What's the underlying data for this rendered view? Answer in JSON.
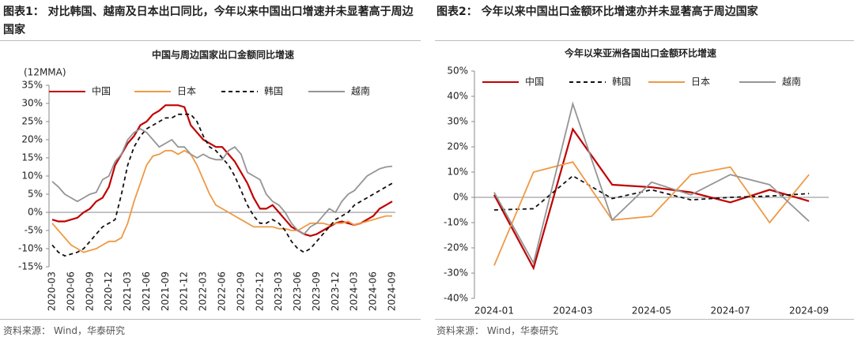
{
  "chart_data": [
    {
      "type": "line",
      "caption": "图表1： 对比韩国、越南及日本出口同比，今年以来中国出口增速并未显著高于周边国家",
      "title": "中国与周边国家出口金额同比增速",
      "annotation": "(12MMA)",
      "source": "资料来源： Wind，华泰研究",
      "categories": [
        "2020-03",
        null,
        null,
        "2020-06",
        null,
        null,
        "2020-09",
        null,
        null,
        "2020-12",
        null,
        null,
        "2021-03",
        null,
        null,
        "2021-06",
        null,
        null,
        "2021-09",
        null,
        null,
        "2021-12",
        null,
        null,
        "2022-03",
        null,
        null,
        "2022-06",
        null,
        null,
        "2022-09",
        null,
        null,
        "2022-12",
        null,
        null,
        "2023-03",
        null,
        null,
        "2023-06",
        null,
        null,
        "2023-09",
        null,
        null,
        "2023-12",
        null,
        null,
        "2024-03",
        null,
        null,
        "2024-06",
        null,
        null,
        "2024-09"
      ],
      "ylim": [
        -15,
        35
      ],
      "yticks": [
        {
          "value": -15,
          "label": "-15%"
        },
        {
          "value": -10,
          "label": "-10%"
        },
        {
          "value": -5,
          "label": "-5%"
        },
        {
          "value": 0,
          "label": "0%"
        },
        {
          "value": 5,
          "label": "5%"
        },
        {
          "value": 10,
          "label": "10%"
        },
        {
          "value": 15,
          "label": "15%"
        },
        {
          "value": 20,
          "label": "20%"
        },
        {
          "value": 25,
          "label": "25%"
        },
        {
          "value": 30,
          "label": "30%"
        },
        {
          "value": 35,
          "label": "35%"
        }
      ],
      "series": [
        {
          "name": "中国",
          "color": "#c00000",
          "line_style": "solid",
          "values": [
            -2,
            -2.5,
            -2.5,
            -2,
            -1.5,
            0,
            1,
            3,
            4,
            7,
            13,
            16,
            19,
            21,
            24,
            25,
            27,
            28,
            29.5,
            29.5,
            29.5,
            29,
            24,
            22,
            20,
            19,
            18,
            18,
            16,
            14,
            11,
            8,
            4,
            1,
            1,
            2,
            0,
            -2,
            -4,
            -5,
            -6,
            -6.5,
            -6,
            -5,
            -4,
            -3,
            -2.5,
            -3,
            -3.5,
            -3,
            -2,
            -1,
            1,
            2,
            3
          ]
        },
        {
          "name": "日本",
          "color": "#ee9a45",
          "line_style": "solid",
          "values": [
            -3,
            -5,
            -7,
            -9,
            -10,
            -11,
            -10.5,
            -10,
            -9,
            -8,
            -8,
            -7,
            -3,
            3,
            8,
            13,
            15.5,
            16,
            17,
            17,
            16,
            17,
            16,
            13,
            9,
            5,
            2,
            1,
            0,
            -1,
            -2,
            -3,
            -4,
            -4,
            -4,
            -4,
            -4.5,
            -4.5,
            -5,
            -5,
            -4,
            -3,
            -3,
            -3,
            -3.5,
            -3,
            -3,
            -2.5,
            -3.5,
            -3,
            -2.5,
            -2,
            -1.5,
            -1,
            -1
          ]
        },
        {
          "name": "韩国",
          "color": "#111111",
          "line_style": "dashed",
          "values": [
            -9,
            -11,
            -12,
            -11.5,
            -11,
            -10,
            -8,
            -6,
            -4,
            -3,
            -2,
            5,
            13,
            18,
            21,
            23,
            24,
            25,
            26,
            26,
            27,
            27,
            27,
            25,
            21,
            18,
            17,
            15,
            13,
            10,
            6,
            2,
            -1,
            -3,
            -3,
            -2,
            -3,
            -5,
            -8,
            -10,
            -11,
            -10,
            -8,
            -6,
            -4,
            -2,
            -1,
            0,
            2,
            3,
            4,
            5,
            6,
            7,
            8
          ]
        },
        {
          "name": "越南",
          "color": "#959595",
          "line_style": "solid",
          "values": [
            8.5,
            7,
            5,
            4,
            3,
            4,
            5,
            5.5,
            9,
            10,
            14,
            16,
            20,
            22,
            23,
            22,
            20,
            18,
            19,
            20,
            18,
            18,
            16,
            15,
            16,
            15,
            14.5,
            14.5,
            17,
            18,
            16,
            11,
            10,
            9,
            5,
            3,
            2,
            0,
            -3,
            -5,
            -6,
            -4,
            -3,
            -1,
            1,
            0,
            3,
            5,
            6,
            8,
            10,
            11,
            12,
            12.5,
            12.7
          ]
        }
      ]
    },
    {
      "type": "line",
      "caption": "图表2： 今年以来中国出口金额环比增速亦并未显著高于周边国家",
      "title": "今年以来亚洲各国出口金额环比增速",
      "source": "资料来源： Wind，华泰研究",
      "categories": [
        "2024-01",
        null,
        "2024-03",
        null,
        "2024-05",
        null,
        "2024-07",
        null,
        "2024-09"
      ],
      "ylim": [
        -40,
        50
      ],
      "yticks": [
        {
          "value": -40,
          "label": "-40%"
        },
        {
          "value": -30,
          "label": "-30%"
        },
        {
          "value": -20,
          "label": "-20%"
        },
        {
          "value": -10,
          "label": "-10%"
        },
        {
          "value": 0,
          "label": "0%"
        },
        {
          "value": 10,
          "label": "10%"
        },
        {
          "value": 20,
          "label": "20%"
        },
        {
          "value": 30,
          "label": "30%"
        },
        {
          "value": 40,
          "label": "40%"
        },
        {
          "value": 50,
          "label": "50%"
        }
      ],
      "series": [
        {
          "name": "中国",
          "color": "#c00000",
          "line_style": "solid",
          "values": [
            1,
            -28,
            27,
            5,
            4,
            2,
            -2,
            3,
            -1.5
          ]
        },
        {
          "name": "韩国",
          "color": "#111111",
          "line_style": "dashed",
          "values": [
            -5,
            -4.5,
            8.5,
            -0.5,
            3,
            -1,
            0,
            0.5,
            1.5
          ]
        },
        {
          "name": "日本",
          "color": "#ee9a45",
          "line_style": "solid",
          "values": [
            -27,
            10,
            14,
            -9,
            -7.5,
            9,
            12,
            -10,
            9
          ]
        },
        {
          "name": "越南",
          "color": "#959595",
          "line_style": "solid",
          "values": [
            2,
            -26,
            37,
            -9,
            6,
            1,
            9,
            5,
            -9.5
          ]
        }
      ]
    }
  ]
}
